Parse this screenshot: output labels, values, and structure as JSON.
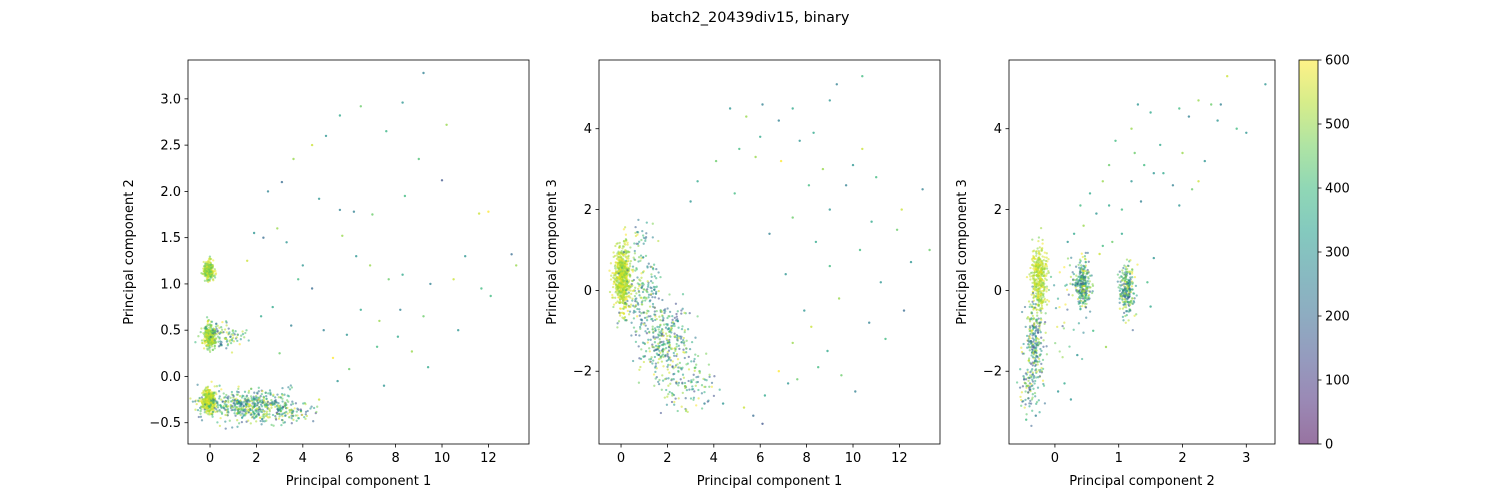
{
  "suptitle": "batch2_20439div15, binary",
  "colormap": "viridis",
  "point_alpha": 0.55,
  "colorbar": {
    "range": [
      0,
      600
    ],
    "ticks": [
      0,
      100,
      200,
      300,
      400,
      500,
      600
    ]
  },
  "chart_data": [
    {
      "type": "scatter",
      "xlabel": "Principal component 1",
      "ylabel": "Principal component 2",
      "xlim": [
        -0.95,
        13.75
      ],
      "ylim": [
        -0.73,
        3.42
      ],
      "xticks": [
        0,
        2,
        4,
        6,
        8,
        10,
        12
      ],
      "yticks": [
        -0.5,
        0.0,
        0.5,
        1.0,
        1.5,
        2.0,
        2.5,
        3.0
      ],
      "ytick_format": 1,
      "clusters": [
        {
          "cx": -0.05,
          "cy": 1.15,
          "sx": 0.11,
          "sy": 0.05,
          "n": 260,
          "hue": [
            420,
            600
          ]
        },
        {
          "cx": 0.0,
          "cy": 0.43,
          "sx": 0.13,
          "sy": 0.06,
          "n": 300,
          "hue": [
            420,
            600
          ]
        },
        {
          "cx": 0.6,
          "cy": 0.45,
          "sx": 0.5,
          "sy": 0.07,
          "n": 90,
          "hue": [
            150,
            600
          ]
        },
        {
          "cx": -0.05,
          "cy": -0.25,
          "sx": 0.14,
          "sy": 0.06,
          "n": 420,
          "hue": [
            470,
            600
          ]
        },
        {
          "cx": 1.6,
          "cy": -0.32,
          "sx": 1.05,
          "sy": 0.08,
          "n": 520,
          "hue": [
            150,
            600
          ]
        },
        {
          "cx": 3.2,
          "cy": -0.4,
          "sx": 0.7,
          "sy": 0.05,
          "n": 80,
          "hue": [
            100,
            600
          ]
        }
      ],
      "scatter_points": [
        [
          9.2,
          3.28,
          250
        ],
        [
          10.2,
          2.72,
          500
        ],
        [
          8.3,
          2.96,
          300
        ],
        [
          6.5,
          2.92,
          450
        ],
        [
          5.6,
          2.82,
          350
        ],
        [
          7.6,
          2.65,
          380
        ],
        [
          5.0,
          2.6,
          300
        ],
        [
          9.0,
          2.35,
          420
        ],
        [
          3.6,
          2.35,
          500
        ],
        [
          4.4,
          2.5,
          550
        ],
        [
          3.1,
          2.1,
          200
        ],
        [
          2.5,
          2.0,
          260
        ],
        [
          4.7,
          1.92,
          300
        ],
        [
          5.6,
          1.8,
          250
        ],
        [
          6.2,
          1.78,
          250
        ],
        [
          7.0,
          1.75,
          450
        ],
        [
          8.4,
          1.95,
          400
        ],
        [
          10.0,
          2.12,
          150
        ],
        [
          11.6,
          1.76,
          550
        ],
        [
          12.0,
          1.78,
          600
        ],
        [
          2.3,
          1.5,
          200
        ],
        [
          3.3,
          1.45,
          300
        ],
        [
          1.6,
          1.25,
          550
        ],
        [
          5.7,
          1.52,
          500
        ],
        [
          6.3,
          1.3,
          300
        ],
        [
          7.7,
          1.05,
          450
        ],
        [
          8.3,
          1.1,
          350
        ],
        [
          9.5,
          1.0,
          250
        ],
        [
          10.5,
          1.05,
          550
        ],
        [
          11.0,
          1.3,
          300
        ],
        [
          11.7,
          0.95,
          400
        ],
        [
          13.0,
          1.32,
          200
        ],
        [
          13.2,
          1.2,
          500
        ],
        [
          12.1,
          0.87,
          400
        ],
        [
          10.7,
          0.5,
          300
        ],
        [
          9.2,
          0.65,
          450
        ],
        [
          8.2,
          0.72,
          250
        ],
        [
          7.3,
          0.6,
          500
        ],
        [
          6.5,
          0.72,
          350
        ],
        [
          5.9,
          0.45,
          300
        ],
        [
          7.2,
          0.32,
          400
        ],
        [
          8.7,
          0.27,
          500
        ],
        [
          9.4,
          0.1,
          350
        ],
        [
          6.0,
          0.08,
          450
        ],
        [
          5.5,
          -0.05,
          300
        ],
        [
          4.7,
          -0.25,
          550
        ],
        [
          7.5,
          -0.1,
          300
        ],
        [
          4.4,
          0.95,
          200
        ],
        [
          3.8,
          1.05,
          400
        ],
        [
          2.7,
          0.75,
          350
        ],
        [
          3.5,
          0.55,
          250
        ],
        [
          1.9,
          1.55,
          300
        ],
        [
          2.9,
          1.6,
          500
        ],
        [
          5.3,
          0.2,
          600
        ],
        [
          8.1,
          0.43,
          350
        ],
        [
          4.9,
          0.5,
          250
        ],
        [
          6.9,
          1.2,
          500
        ],
        [
          3.0,
          0.25,
          450
        ],
        [
          2.2,
          0.65,
          350
        ],
        [
          4.0,
          1.2,
          300
        ]
      ]
    },
    {
      "type": "scatter",
      "xlabel": "Principal component 1",
      "ylabel": "Principal component 3",
      "xlim": [
        -0.95,
        13.75
      ],
      "ylim": [
        -3.8,
        5.7
      ],
      "xticks": [
        0,
        2,
        4,
        6,
        8,
        10,
        12
      ],
      "yticks": [
        -2,
        0,
        2,
        4
      ],
      "ytick_format": 0,
      "clusters": [
        {
          "cx": 0.05,
          "cy": 0.3,
          "sx": 0.17,
          "sy": 0.4,
          "n": 650,
          "hue": [
            470,
            600
          ]
        },
        {
          "cx": 0.9,
          "cy": -0.1,
          "sx": 0.4,
          "sy": 0.45,
          "n": 180,
          "hue": [
            150,
            600
          ]
        },
        {
          "cx": 1.9,
          "cy": -1.3,
          "sx": 0.5,
          "sy": 0.55,
          "n": 330,
          "hue": [
            120,
            600
          ]
        },
        {
          "cx": 3.0,
          "cy": -2.3,
          "sx": 0.55,
          "sy": 0.35,
          "n": 100,
          "hue": [
            120,
            600
          ]
        },
        {
          "cx": 0.9,
          "cy": 1.2,
          "sx": 0.3,
          "sy": 0.3,
          "n": 30,
          "hue": [
            150,
            600
          ]
        }
      ],
      "scatter_points": [
        [
          10.4,
          5.3,
          400
        ],
        [
          9.0,
          4.7,
          300
        ],
        [
          9.3,
          5.1,
          250
        ],
        [
          7.4,
          4.5,
          350
        ],
        [
          6.1,
          4.6,
          250
        ],
        [
          4.7,
          4.5,
          300
        ],
        [
          5.4,
          4.3,
          500
        ],
        [
          6.8,
          4.2,
          250
        ],
        [
          7.7,
          3.7,
          300
        ],
        [
          8.3,
          3.9,
          350
        ],
        [
          5.1,
          3.5,
          400
        ],
        [
          4.1,
          3.2,
          450
        ],
        [
          3.3,
          2.7,
          350
        ],
        [
          3.0,
          2.2,
          300
        ],
        [
          5.8,
          3.3,
          500
        ],
        [
          6.9,
          3.2,
          600
        ],
        [
          10.0,
          3.1,
          300
        ],
        [
          10.4,
          3.5,
          550
        ],
        [
          11.0,
          2.8,
          400
        ],
        [
          13.0,
          2.5,
          250
        ],
        [
          12.1,
          2.0,
          550
        ],
        [
          8.1,
          2.6,
          400
        ],
        [
          9.0,
          2.0,
          300
        ],
        [
          7.4,
          1.8,
          450
        ],
        [
          6.4,
          1.4,
          250
        ],
        [
          8.4,
          1.2,
          350
        ],
        [
          10.3,
          1.0,
          400
        ],
        [
          12.5,
          0.7,
          300
        ],
        [
          13.3,
          1.0,
          450
        ],
        [
          11.2,
          0.2,
          300
        ],
        [
          9.4,
          -0.2,
          500
        ],
        [
          9.0,
          0.6,
          400
        ],
        [
          7.9,
          -0.5,
          300
        ],
        [
          10.7,
          -0.8,
          250
        ],
        [
          11.4,
          -1.2,
          400
        ],
        [
          8.9,
          -1.5,
          350
        ],
        [
          7.4,
          -1.3,
          500
        ],
        [
          8.5,
          -1.9,
          400
        ],
        [
          9.5,
          -2.1,
          450
        ],
        [
          10.1,
          -2.5,
          250
        ],
        [
          7.2,
          -2.3,
          300
        ],
        [
          6.2,
          -2.6,
          350
        ],
        [
          6.8,
          -2.0,
          600
        ],
        [
          5.3,
          -2.9,
          550
        ],
        [
          5.7,
          -3.1,
          200
        ],
        [
          4.4,
          -2.8,
          300
        ],
        [
          3.6,
          -2.8,
          250
        ],
        [
          6.1,
          -3.3,
          150
        ],
        [
          7.6,
          -2.2,
          450
        ],
        [
          12.2,
          -0.5,
          200
        ],
        [
          10.8,
          1.7,
          350
        ],
        [
          9.7,
          2.6,
          250
        ],
        [
          4.9,
          2.4,
          400
        ],
        [
          6.0,
          3.8,
          350
        ],
        [
          8.7,
          3.0,
          500
        ],
        [
          11.9,
          1.5,
          450
        ],
        [
          7.1,
          0.4,
          300
        ],
        [
          8.2,
          -0.9,
          550
        ]
      ]
    },
    {
      "type": "scatter",
      "xlabel": "Principal component 2",
      "ylabel": "Principal component 3",
      "xlim": [
        -0.72,
        3.45
      ],
      "ylim": [
        -3.8,
        5.7
      ],
      "xticks": [
        0,
        1,
        2,
        3
      ],
      "yticks": [
        -2,
        0,
        2,
        4
      ],
      "ytick_format": 0,
      "clusters": [
        {
          "cx": -0.25,
          "cy": 0.3,
          "sx": 0.06,
          "sy": 0.38,
          "n": 380,
          "hue": [
            470,
            600
          ]
        },
        {
          "cx": -0.32,
          "cy": -1.3,
          "sx": 0.07,
          "sy": 0.6,
          "n": 230,
          "hue": [
            120,
            600
          ]
        },
        {
          "cx": -0.38,
          "cy": -2.4,
          "sx": 0.08,
          "sy": 0.35,
          "n": 70,
          "hue": [
            120,
            600
          ]
        },
        {
          "cx": 0.43,
          "cy": 0.2,
          "sx": 0.07,
          "sy": 0.3,
          "n": 260,
          "hue": [
            150,
            600
          ]
        },
        {
          "cx": 1.13,
          "cy": 0.05,
          "sx": 0.06,
          "sy": 0.32,
          "n": 230,
          "hue": [
            150,
            600
          ]
        },
        {
          "cx": 0.15,
          "cy": -0.6,
          "sx": 0.2,
          "sy": 0.6,
          "n": 40,
          "hue": [
            150,
            600
          ]
        }
      ],
      "scatter_points": [
        [
          3.3,
          5.1,
          300
        ],
        [
          2.7,
          5.3,
          550
        ],
        [
          1.3,
          4.6,
          300
        ],
        [
          1.5,
          4.4,
          350
        ],
        [
          1.95,
          4.5,
          400
        ],
        [
          2.1,
          4.3,
          250
        ],
        [
          2.25,
          4.7,
          500
        ],
        [
          2.45,
          4.6,
          450
        ],
        [
          2.55,
          4.2,
          300
        ],
        [
          2.85,
          4.0,
          400
        ],
        [
          3.0,
          3.9,
          300
        ],
        [
          1.2,
          4.0,
          500
        ],
        [
          0.95,
          3.7,
          400
        ],
        [
          1.65,
          3.6,
          350
        ],
        [
          2.0,
          3.4,
          500
        ],
        [
          2.35,
          3.2,
          300
        ],
        [
          0.85,
          3.1,
          450
        ],
        [
          1.4,
          3.1,
          400
        ],
        [
          1.55,
          2.9,
          300
        ],
        [
          1.85,
          2.6,
          250
        ],
        [
          2.15,
          2.5,
          450
        ],
        [
          0.75,
          2.7,
          500
        ],
        [
          0.55,
          2.4,
          350
        ],
        [
          1.2,
          2.7,
          300
        ],
        [
          1.35,
          2.2,
          250
        ],
        [
          1.05,
          2.0,
          400
        ],
        [
          0.85,
          2.1,
          350
        ],
        [
          1.95,
          2.1,
          300
        ],
        [
          2.25,
          2.7,
          550
        ],
        [
          0.65,
          1.9,
          300
        ],
        [
          0.45,
          1.6,
          500
        ],
        [
          0.3,
          1.4,
          350
        ],
        [
          0.2,
          1.2,
          300
        ],
        [
          0.9,
          1.2,
          450
        ],
        [
          0.75,
          1.1,
          400
        ],
        [
          1.55,
          0.8,
          300
        ],
        [
          1.45,
          0.2,
          400
        ],
        [
          1.5,
          -0.4,
          350
        ],
        [
          0.8,
          -1.4,
          500
        ],
        [
          0.35,
          -1.6,
          300
        ],
        [
          0.6,
          -1.0,
          400
        ],
        [
          0.15,
          -2.3,
          350
        ],
        [
          0.05,
          -2.5,
          300
        ],
        [
          -0.3,
          -3.1,
          250
        ],
        [
          -0.45,
          -3.2,
          400
        ],
        [
          1.7,
          2.9,
          350
        ],
        [
          1.25,
          3.4,
          450
        ],
        [
          2.6,
          4.6,
          250
        ],
        [
          0.4,
          2.1,
          400
        ],
        [
          1.05,
          1.4,
          350
        ],
        [
          0.25,
          -2.7,
          300
        ],
        [
          0.7,
          0.9,
          550
        ]
      ]
    }
  ]
}
